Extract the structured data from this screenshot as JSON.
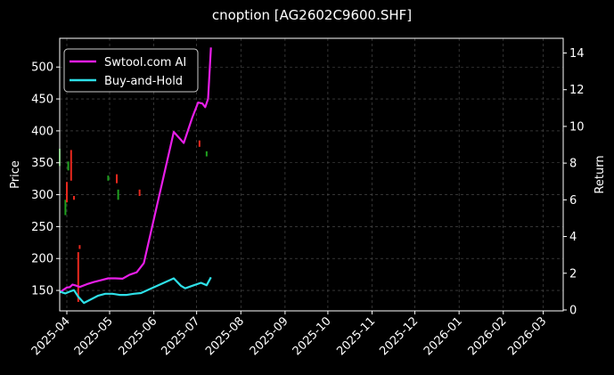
{
  "chart_data": {
    "type": "line",
    "title": "cnoption [AG2602C9600.SHF]",
    "xlabel": "",
    "ylabel_left": "Price",
    "ylabel_right": "Return",
    "x_ticks": [
      "2025-04",
      "2025-05",
      "2025-06",
      "2025-07",
      "2025-08",
      "2025-09",
      "2025-10",
      "2025-11",
      "2025-12",
      "2026-01",
      "2026-02",
      "2026-03"
    ],
    "left_ticks": [
      150,
      200,
      250,
      300,
      350,
      400,
      450,
      500
    ],
    "right_ticks": [
      0,
      2,
      4,
      6,
      8,
      10,
      12,
      14
    ],
    "left_ylim": [
      118,
      545
    ],
    "right_ylim": [
      -0.05,
      14.8
    ],
    "xlim": [
      "2025-03-27",
      "2026-03-15"
    ],
    "grid": true,
    "legend_position": "top-left",
    "colors": {
      "ai": "#e81ee8",
      "hold": "#2ee0e8",
      "up": "#1fa01f",
      "down": "#e8281e",
      "background": "#000000"
    },
    "series": [
      {
        "name": "Swtool.com AI",
        "axis": "right",
        "x": [
          "2025-03-27",
          "2025-03-30",
          "2025-04-01",
          "2025-04-03",
          "2025-04-05",
          "2025-04-07",
          "2025-04-10",
          "2025-04-15",
          "2025-04-20",
          "2025-04-25",
          "2025-04-30",
          "2025-05-05",
          "2025-05-10",
          "2025-05-15",
          "2025-05-20",
          "2025-05-25",
          "2025-06-15",
          "2025-06-22",
          "2025-06-28",
          "2025-07-02",
          "2025-07-05",
          "2025-07-07",
          "2025-07-09",
          "2025-07-11"
        ],
        "values": [
          0.95,
          1.12,
          1.22,
          1.24,
          1.38,
          1.34,
          1.25,
          1.4,
          1.52,
          1.62,
          1.72,
          1.72,
          1.7,
          1.92,
          2.05,
          2.55,
          9.7,
          9.1,
          10.5,
          11.3,
          11.25,
          11.05,
          11.5,
          14.3
        ]
      },
      {
        "name": "Buy-and-Hold",
        "axis": "right",
        "x": [
          "2025-03-27",
          "2025-03-31",
          "2025-04-03",
          "2025-04-06",
          "2025-04-09",
          "2025-04-13",
          "2025-04-18",
          "2025-04-23",
          "2025-04-28",
          "2025-05-03",
          "2025-05-08",
          "2025-05-13",
          "2025-05-18",
          "2025-05-23",
          "2025-06-15",
          "2025-06-20",
          "2025-06-23",
          "2025-06-28",
          "2025-07-04",
          "2025-07-08",
          "2025-07-11"
        ],
        "values": [
          1.0,
          0.9,
          1.0,
          1.08,
          0.72,
          0.38,
          0.58,
          0.78,
          0.88,
          0.88,
          0.82,
          0.82,
          0.88,
          0.92,
          1.72,
          1.32,
          1.18,
          1.32,
          1.48,
          1.35,
          1.78
        ]
      }
    ],
    "candles": [
      {
        "x": "2025-03-27",
        "low": 345,
        "high": 372,
        "dir": "up"
      },
      {
        "x": "2025-03-31",
        "low": 268,
        "high": 292,
        "dir": "up"
      },
      {
        "x": "2025-04-01",
        "low": 288,
        "high": 320,
        "dir": "down"
      },
      {
        "x": "2025-04-02",
        "low": 338,
        "high": 352,
        "dir": "up"
      },
      {
        "x": "2025-04-04",
        "low": 322,
        "high": 370,
        "dir": "down"
      },
      {
        "x": "2025-04-06",
        "low": 292,
        "high": 298,
        "dir": "down"
      },
      {
        "x": "2025-04-09",
        "low": 132,
        "high": 210,
        "dir": "down"
      },
      {
        "x": "2025-04-10",
        "low": 215,
        "high": 221,
        "dir": "down"
      },
      {
        "x": "2025-04-30",
        "low": 322,
        "high": 330,
        "dir": "up"
      },
      {
        "x": "2025-05-06",
        "low": 318,
        "high": 332,
        "dir": "down"
      },
      {
        "x": "2025-05-07",
        "low": 292,
        "high": 308,
        "dir": "up"
      },
      {
        "x": "2025-05-22",
        "low": 298,
        "high": 308,
        "dir": "down"
      },
      {
        "x": "2025-07-03",
        "low": 375,
        "high": 385,
        "dir": "down"
      },
      {
        "x": "2025-07-08",
        "low": 360,
        "high": 368,
        "dir": "up"
      }
    ]
  }
}
